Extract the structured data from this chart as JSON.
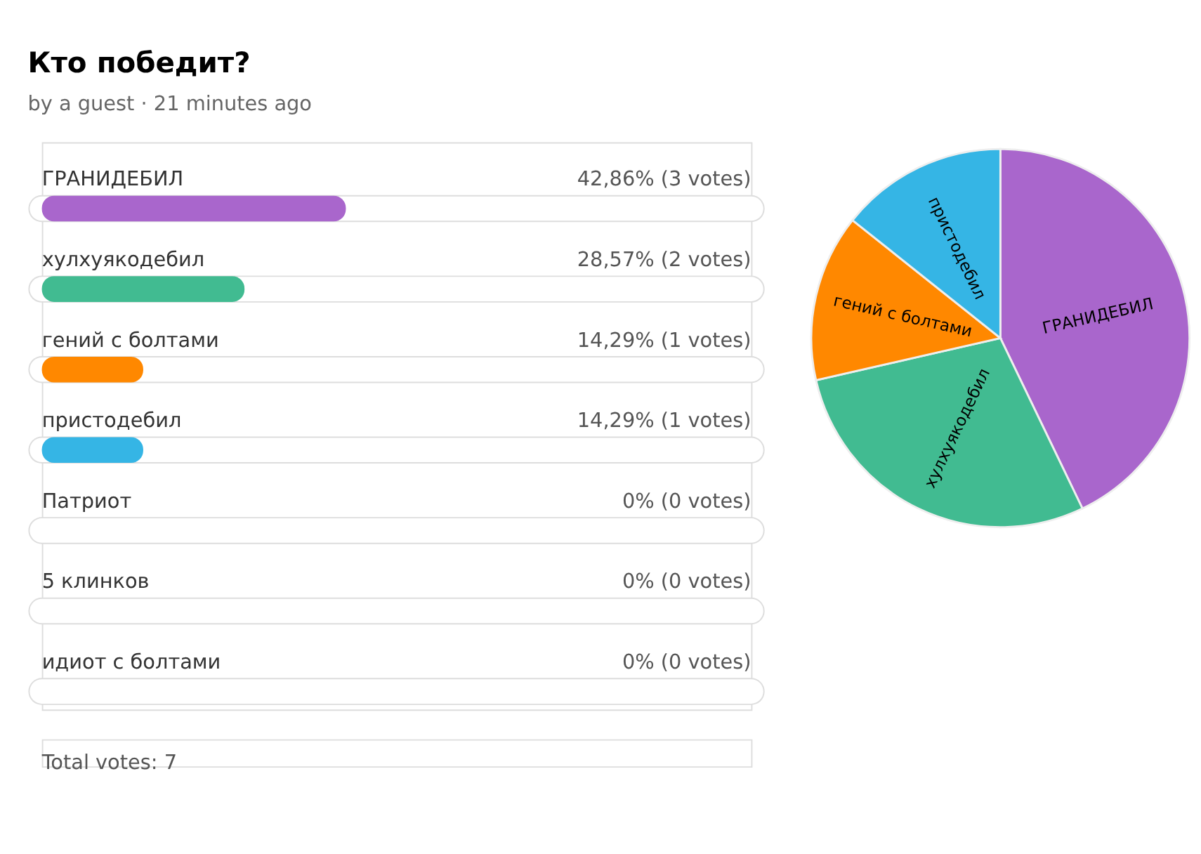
{
  "chart_data": [
    {
      "type": "bar",
      "orientation": "horizontal",
      "title": "Кто победит?",
      "subtitle": "by a guest · 21 minutes ago",
      "categories": [
        "ГРАНИДЕБИЛ",
        "хулхуякодебил",
        "гений с болтами",
        "пристодебил",
        "Патриот",
        "5 клинков",
        "идиот с болтами"
      ],
      "values": [
        42.86,
        28.57,
        14.29,
        14.29,
        0,
        0,
        0
      ],
      "value_labels": [
        "42,86% (3 votes)",
        "28,57% (2 votes)",
        "14,29% (1 votes)",
        "14,29% (1 votes)",
        "0% (0 votes)",
        "0% (0 votes)",
        "0% (0 votes)"
      ],
      "colors": [
        "#a966cc",
        "#41bb91",
        "#ff8800",
        "#35b5e5",
        null,
        null,
        null
      ],
      "xlim": [
        0,
        100
      ],
      "tick_labels": false,
      "annotations": [
        "Total votes: 7"
      ]
    },
    {
      "type": "pie",
      "categories": [
        "ГРАНИДЕБИЛ",
        "хулхуякодебил",
        "гений с болтами",
        "пристодебил"
      ],
      "values": [
        42.86,
        28.57,
        14.29,
        14.29
      ],
      "colors": [
        "#a966cc",
        "#41bb91",
        "#ff8800",
        "#35b5e5"
      ]
    }
  ]
}
